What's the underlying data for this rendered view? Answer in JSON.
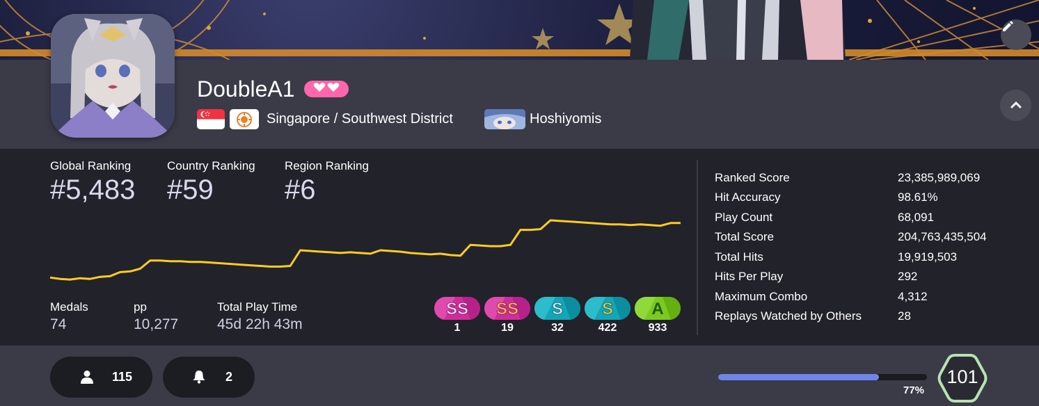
{
  "profile": {
    "username": "DoubleA1",
    "location": "Singapore / Southwest District",
    "team": "Hoshiyomis"
  },
  "icons": {
    "edit": "pencil-icon",
    "collapse": "chevron-up-icon",
    "supporter": "heart-icon",
    "friends": "user-icon",
    "subscribers": "bell-icon"
  },
  "colors": {
    "supporter": "#ff66ab",
    "rank_history_line": "#ffcc22",
    "level_progress": "#6e86e8"
  },
  "rankings": [
    {
      "label": "Global Ranking",
      "value": "#5,483"
    },
    {
      "label": "Country Ranking",
      "value": "#59"
    },
    {
      "label": "Region Ranking",
      "value": "#6"
    }
  ],
  "summary": [
    {
      "label": "Medals",
      "value": "74"
    },
    {
      "label": "pp",
      "value": "10,277"
    },
    {
      "label": "Total Play Time",
      "value": "45d 22h 43m"
    }
  ],
  "grades": [
    {
      "grade": "SS",
      "variant": "silver",
      "count": "1"
    },
    {
      "grade": "SS",
      "variant": "gold",
      "count": "19"
    },
    {
      "grade": "S",
      "variant": "silver",
      "count": "32"
    },
    {
      "grade": "S",
      "variant": "gold",
      "count": "422"
    },
    {
      "grade": "A",
      "variant": "",
      "count": "933"
    }
  ],
  "stats": [
    {
      "label": "Ranked Score",
      "value": "23,385,989,069"
    },
    {
      "label": "Hit Accuracy",
      "value": "98.61%"
    },
    {
      "label": "Play Count",
      "value": "68,091"
    },
    {
      "label": "Total Score",
      "value": "204,763,435,504"
    },
    {
      "label": "Total Hits",
      "value": "19,919,503"
    },
    {
      "label": "Hits Per Play",
      "value": "292"
    },
    {
      "label": "Maximum Combo",
      "value": "4,312"
    },
    {
      "label": "Replays Watched by Others",
      "value": "28"
    }
  ],
  "social": {
    "friends": "115",
    "subscribers": "2"
  },
  "level": {
    "value": "101",
    "progress_label": "77%",
    "progress": 0.77
  },
  "chart_data": {
    "type": "line",
    "title": "",
    "xlabel": "",
    "ylabel": "",
    "grid": false,
    "series": [
      {
        "values": [
          0.1,
          0.08,
          0.07,
          0.09,
          0.08,
          0.11,
          0.12,
          0.18,
          0.19,
          0.23,
          0.35,
          0.35,
          0.34,
          0.34,
          0.33,
          0.33,
          0.32,
          0.31,
          0.3,
          0.29,
          0.28,
          0.27,
          0.26,
          0.26,
          0.27,
          0.5,
          0.49,
          0.48,
          0.47,
          0.46,
          0.47,
          0.46,
          0.45,
          0.5,
          0.49,
          0.48,
          0.46,
          0.45,
          0.44,
          0.45,
          0.43,
          0.42,
          0.58,
          0.57,
          0.56,
          0.56,
          0.58,
          0.8,
          0.8,
          0.81,
          0.94,
          0.93,
          0.92,
          0.91,
          0.9,
          0.89,
          0.88,
          0.88,
          0.87,
          0.88,
          0.87,
          0.86,
          0.9,
          0.9
        ]
      }
    ]
  }
}
